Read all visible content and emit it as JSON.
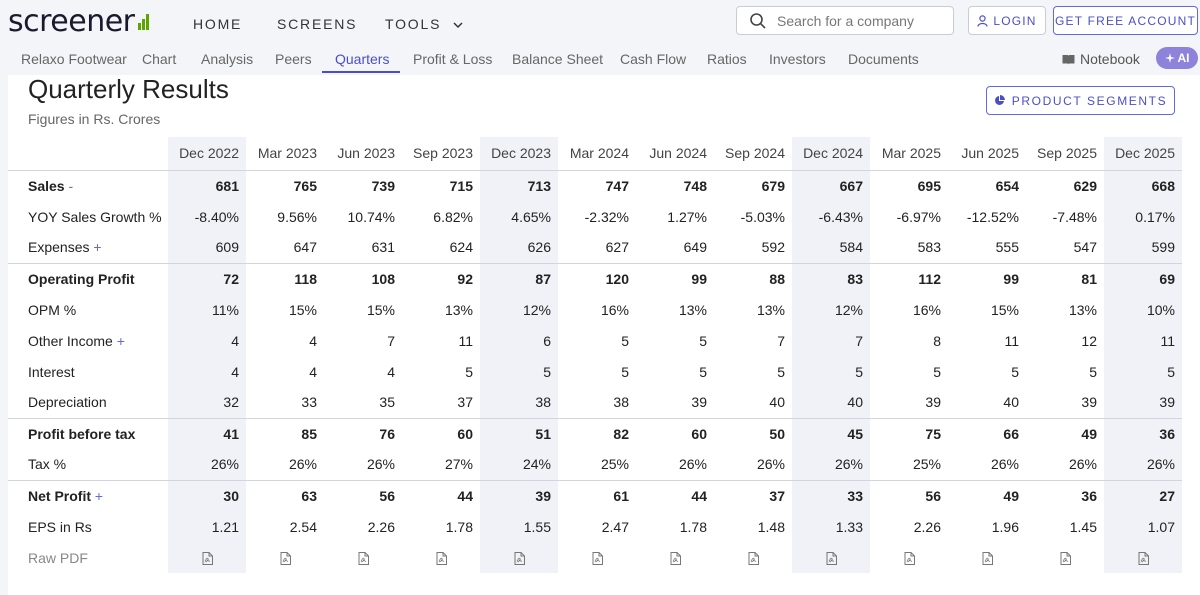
{
  "brand": {
    "logo_text": "screener"
  },
  "nav": {
    "home": "HOME",
    "screens": "SCREENS",
    "tools": "TOOLS"
  },
  "search": {
    "placeholder": "Search for a company"
  },
  "auth": {
    "login": "LOGIN",
    "free_account": "GET FREE ACCOUNT"
  },
  "subnav": {
    "items": [
      "Relaxo Footwear",
      "Chart",
      "Analysis",
      "Peers",
      "Quarters",
      "Profit & Loss",
      "Balance Sheet",
      "Cash Flow",
      "Ratios",
      "Investors",
      "Documents"
    ],
    "active": "Quarters",
    "notebook": "Notebook",
    "ai": "AI"
  },
  "section": {
    "title": "Quarterly Results",
    "subtitle": "Figures in Rs. Crores",
    "segments_button": "PRODUCT SEGMENTS"
  },
  "table": {
    "quarters": [
      "Dec 2022",
      "Mar 2023",
      "Jun 2023",
      "Sep 2023",
      "Dec 2023",
      "Mar 2024",
      "Jun 2024",
      "Sep 2024",
      "Dec 2024",
      "Mar 2025",
      "Jun 2025",
      "Sep 2025",
      "Dec 2025"
    ],
    "rows": [
      {
        "label": "Sales",
        "suffix": "-",
        "bold": true,
        "values": [
          "681",
          "765",
          "739",
          "715",
          "713",
          "747",
          "748",
          "679",
          "667",
          "695",
          "654",
          "629",
          "668"
        ]
      },
      {
        "label": "YOY Sales Growth %",
        "suffix": "",
        "bold": false,
        "values": [
          "-8.40%",
          "9.56%",
          "10.74%",
          "6.82%",
          "4.65%",
          "-2.32%",
          "1.27%",
          "-5.03%",
          "-6.43%",
          "-6.97%",
          "-12.52%",
          "-7.48%",
          "0.17%"
        ]
      },
      {
        "label": "Expenses",
        "suffix": "+",
        "bold": false,
        "values": [
          "609",
          "647",
          "631",
          "624",
          "626",
          "627",
          "649",
          "592",
          "584",
          "583",
          "555",
          "547",
          "599"
        ]
      },
      {
        "label": "Operating Profit",
        "suffix": "",
        "bold": true,
        "values": [
          "72",
          "118",
          "108",
          "92",
          "87",
          "120",
          "99",
          "88",
          "83",
          "112",
          "99",
          "81",
          "69"
        ]
      },
      {
        "label": "OPM %",
        "suffix": "",
        "bold": false,
        "values": [
          "11%",
          "15%",
          "15%",
          "13%",
          "12%",
          "16%",
          "13%",
          "13%",
          "12%",
          "16%",
          "15%",
          "13%",
          "10%"
        ]
      },
      {
        "label": "Other Income",
        "suffix": "+",
        "bold": false,
        "values": [
          "4",
          "4",
          "7",
          "11",
          "6",
          "5",
          "5",
          "7",
          "7",
          "8",
          "11",
          "12",
          "11"
        ]
      },
      {
        "label": "Interest",
        "suffix": "",
        "bold": false,
        "values": [
          "4",
          "4",
          "4",
          "5",
          "5",
          "5",
          "5",
          "5",
          "5",
          "5",
          "5",
          "5",
          "5"
        ]
      },
      {
        "label": "Depreciation",
        "suffix": "",
        "bold": false,
        "values": [
          "32",
          "33",
          "35",
          "37",
          "38",
          "38",
          "39",
          "40",
          "40",
          "39",
          "40",
          "39",
          "39"
        ]
      },
      {
        "label": "Profit before tax",
        "suffix": "",
        "bold": true,
        "values": [
          "41",
          "85",
          "76",
          "60",
          "51",
          "82",
          "60",
          "50",
          "45",
          "75",
          "66",
          "49",
          "36"
        ]
      },
      {
        "label": "Tax %",
        "suffix": "",
        "bold": false,
        "values": [
          "26%",
          "26%",
          "26%",
          "27%",
          "24%",
          "25%",
          "26%",
          "26%",
          "26%",
          "25%",
          "26%",
          "26%",
          "26%"
        ]
      },
      {
        "label": "Net Profit",
        "suffix": "+",
        "bold": true,
        "values": [
          "30",
          "63",
          "56",
          "44",
          "39",
          "61",
          "44",
          "37",
          "33",
          "56",
          "49",
          "36",
          "27"
        ]
      },
      {
        "label": "EPS in Rs",
        "suffix": "",
        "bold": false,
        "values": [
          "1.21",
          "2.54",
          "2.26",
          "1.78",
          "1.55",
          "2.47",
          "1.78",
          "1.48",
          "1.33",
          "2.26",
          "1.96",
          "1.45",
          "1.07"
        ]
      }
    ],
    "raw_pdf_label": "Raw PDF"
  },
  "colors": {
    "accent": "#4b4fc6",
    "shade": "#f1f2f7",
    "logo_green": "#5ea500"
  }
}
